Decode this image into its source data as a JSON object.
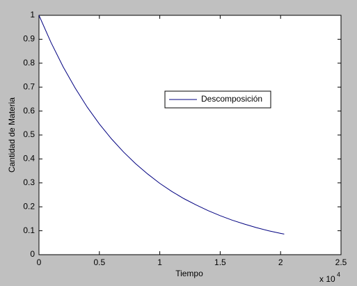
{
  "chart_data": {
    "type": "line",
    "xlabel": "Tiempo",
    "ylabel": "Cantidad de Materia",
    "x_multiplier": "x 10",
    "x_multiplier_exponent": "4",
    "x": [
      0,
      0.1,
      0.2,
      0.3,
      0.4,
      0.5,
      0.6,
      0.7,
      0.8,
      0.9,
      1.0,
      1.1,
      1.2,
      1.3,
      1.4,
      1.5,
      1.6,
      1.7,
      1.8,
      1.9,
      2.0,
      2.03
    ],
    "series": [
      {
        "name": "Descomposición",
        "color": "#000080",
        "values": [
          1,
          0.886,
          0.785,
          0.696,
          0.616,
          0.546,
          0.484,
          0.429,
          0.38,
          0.337,
          0.298,
          0.264,
          0.234,
          0.208,
          0.184,
          0.163,
          0.144,
          0.128,
          0.113,
          0.1,
          0.089,
          0.086
        ]
      }
    ],
    "xlim": [
      0,
      2.5
    ],
    "xticks": [
      0,
      0.5,
      1,
      1.5,
      2,
      2.5
    ],
    "ylim": [
      0,
      1
    ],
    "yticks": [
      0,
      0.1,
      0.2,
      0.3,
      0.4,
      0.5,
      0.6,
      0.7,
      0.8,
      0.9,
      1
    ],
    "grid": false,
    "legend_position": "center"
  }
}
